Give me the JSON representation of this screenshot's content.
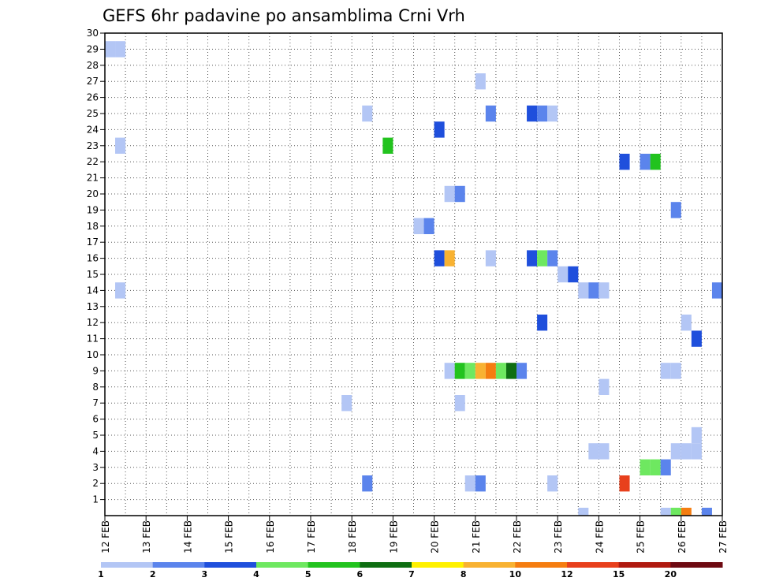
{
  "chart_data": {
    "type": "heatmap",
    "title": "GEFS 6hr padavine po ansamblima Crni Vrh",
    "xlabel": "",
    "ylabel": "",
    "x_ticks": [
      "12 FEB",
      "13 FEB",
      "14 FEB",
      "15 FEB",
      "16 FEB",
      "17 FEB",
      "18 FEB",
      "19 FEB",
      "20 FEB",
      "21 FEB",
      "22 FEB",
      "23 FEB",
      "24 FEB",
      "25 FEB",
      "26 FEB",
      "27 FEB"
    ],
    "y_ticks": [
      "1",
      "2",
      "3",
      "4",
      "5",
      "6",
      "7",
      "8",
      "9",
      "10",
      "11",
      "12",
      "13",
      "14",
      "15",
      "16",
      "17",
      "18",
      "19",
      "20",
      "21",
      "22",
      "23",
      "24",
      "25",
      "26",
      "27",
      "28",
      "29",
      "30"
    ],
    "xlim": [
      12,
      27
    ],
    "ylim": [
      0,
      30
    ],
    "grid": true,
    "legend_position": "bottom",
    "legend": {
      "labels": [
        "1",
        "2",
        "3",
        "4",
        "5",
        "6",
        "7",
        "8",
        "10",
        "12",
        "15",
        "20"
      ],
      "colors": [
        "#b3c6f5",
        "#5b84ec",
        "#1f4fdc",
        "#6ee860",
        "#22c31e",
        "#0e6e12",
        "#fff100",
        "#f8b232",
        "#f57d10",
        "#e8401c",
        "#b01a10",
        "#6e0a12"
      ]
    },
    "cells": [
      {
        "day": 12.125,
        "member": 29,
        "value": 1
      },
      {
        "day": 12.375,
        "member": 29,
        "value": 1
      },
      {
        "day": 12.375,
        "member": 23,
        "value": 1
      },
      {
        "day": 12.375,
        "member": 14,
        "value": 1
      },
      {
        "day": 17.875,
        "member": 7,
        "value": 1
      },
      {
        "day": 18.375,
        "member": 25,
        "value": 1
      },
      {
        "day": 18.375,
        "member": 2,
        "value": 2
      },
      {
        "day": 18.875,
        "member": 23,
        "value": 5
      },
      {
        "day": 19.625,
        "member": 18,
        "value": 1
      },
      {
        "day": 19.875,
        "member": 18,
        "value": 2
      },
      {
        "day": 20.125,
        "member": 24,
        "value": 3
      },
      {
        "day": 20.125,
        "member": 16,
        "value": 3
      },
      {
        "day": 20.375,
        "member": 16,
        "value": 8
      },
      {
        "day": 20.375,
        "member": 20,
        "value": 1
      },
      {
        "day": 20.625,
        "member": 20,
        "value": 2
      },
      {
        "day": 20.625,
        "member": 7,
        "value": 1
      },
      {
        "day": 20.375,
        "member": 9,
        "value": 1
      },
      {
        "day": 20.625,
        "member": 9,
        "value": 5
      },
      {
        "day": 20.875,
        "member": 9,
        "value": 4
      },
      {
        "day": 21.125,
        "member": 9,
        "value": 8
      },
      {
        "day": 21.375,
        "member": 9,
        "value": 10
      },
      {
        "day": 21.625,
        "member": 9,
        "value": 4
      },
      {
        "day": 21.875,
        "member": 9,
        "value": 6
      },
      {
        "day": 22.125,
        "member": 9,
        "value": 2
      },
      {
        "day": 20.875,
        "member": 2,
        "value": 1
      },
      {
        "day": 21.125,
        "member": 2,
        "value": 2
      },
      {
        "day": 21.125,
        "member": 27,
        "value": 1
      },
      {
        "day": 21.375,
        "member": 25,
        "value": 2
      },
      {
        "day": 21.375,
        "member": 16,
        "value": 1
      },
      {
        "day": 22.375,
        "member": 25,
        "value": 3
      },
      {
        "day": 22.625,
        "member": 25,
        "value": 2
      },
      {
        "day": 22.875,
        "member": 25,
        "value": 1
      },
      {
        "day": 22.375,
        "member": 16,
        "value": 3
      },
      {
        "day": 22.625,
        "member": 16,
        "value": 4
      },
      {
        "day": 22.875,
        "member": 16,
        "value": 2
      },
      {
        "day": 22.625,
        "member": 12,
        "value": 3
      },
      {
        "day": 22.875,
        "member": 2,
        "value": 1
      },
      {
        "day": 23.125,
        "member": 15,
        "value": 1
      },
      {
        "day": 23.375,
        "member": 15,
        "value": 3
      },
      {
        "day": 23.625,
        "member": 14,
        "value": 1
      },
      {
        "day": 23.875,
        "member": 14,
        "value": 2
      },
      {
        "day": 24.125,
        "member": 14,
        "value": 1
      },
      {
        "day": 23.875,
        "member": 4,
        "value": 1
      },
      {
        "day": 24.125,
        "member": 4,
        "value": 1
      },
      {
        "day": 24.125,
        "member": 8,
        "value": 1
      },
      {
        "day": 24.625,
        "member": 22,
        "value": 3
      },
      {
        "day": 25.125,
        "member": 22,
        "value": 2
      },
      {
        "day": 25.375,
        "member": 22,
        "value": 5
      },
      {
        "day": 24.625,
        "member": 2,
        "value": 12
      },
      {
        "day": 25.125,
        "member": 3,
        "value": 4
      },
      {
        "day": 25.375,
        "member": 3,
        "value": 4
      },
      {
        "day": 25.625,
        "member": 3,
        "value": 2
      },
      {
        "day": 25.875,
        "member": 19,
        "value": 2
      },
      {
        "day": 25.625,
        "member": 9,
        "value": 1
      },
      {
        "day": 25.875,
        "member": 9,
        "value": 1
      },
      {
        "day": 25.875,
        "member": 4,
        "value": 1
      },
      {
        "day": 26.125,
        "member": 4,
        "value": 1
      },
      {
        "day": 26.375,
        "member": 4,
        "value": 1
      },
      {
        "day": 26.375,
        "member": 5,
        "value": 1
      },
      {
        "day": 26.125,
        "member": 12,
        "value": 1
      },
      {
        "day": 26.375,
        "member": 11,
        "value": 3
      },
      {
        "day": 26.875,
        "member": 14,
        "value": 2
      },
      {
        "day": 23.625,
        "member": 0,
        "value": 1
      },
      {
        "day": 25.625,
        "member": 0,
        "value": 1
      },
      {
        "day": 25.875,
        "member": 0,
        "value": 4
      },
      {
        "day": 26.125,
        "member": 0,
        "value": 10
      },
      {
        "day": 26.625,
        "member": 0,
        "value": 2
      }
    ]
  }
}
